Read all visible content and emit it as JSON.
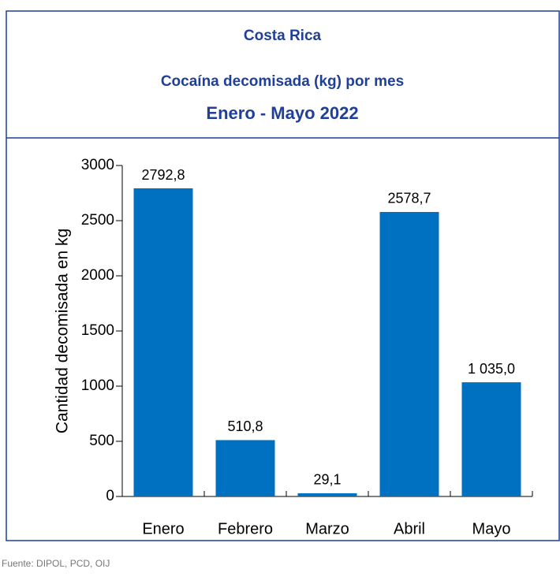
{
  "chart_data": {
    "type": "bar",
    "title": "Costa Rica",
    "subtitle": "Cocaína decomisada (kg) por mes",
    "period": "Enero - Mayo 2022",
    "y_label": "Cantidad decomisada en kg",
    "categories": [
      "Enero",
      "Febrero",
      "Marzo",
      "Abril",
      "Mayo"
    ],
    "values": [
      2792.8,
      510.8,
      29.1,
      2578.7,
      1035.0
    ],
    "value_labels": [
      "2792,8",
      "510,8",
      "29,1",
      "2578,7",
      "1 035,0"
    ],
    "color": "#0070c0",
    "ylim": [
      0,
      3000
    ],
    "yticks": [
      0,
      500,
      1000,
      1500,
      2000,
      2500,
      3000
    ],
    "grid": false,
    "source": "Fuente: DIPOL, PCD, OIJ"
  }
}
